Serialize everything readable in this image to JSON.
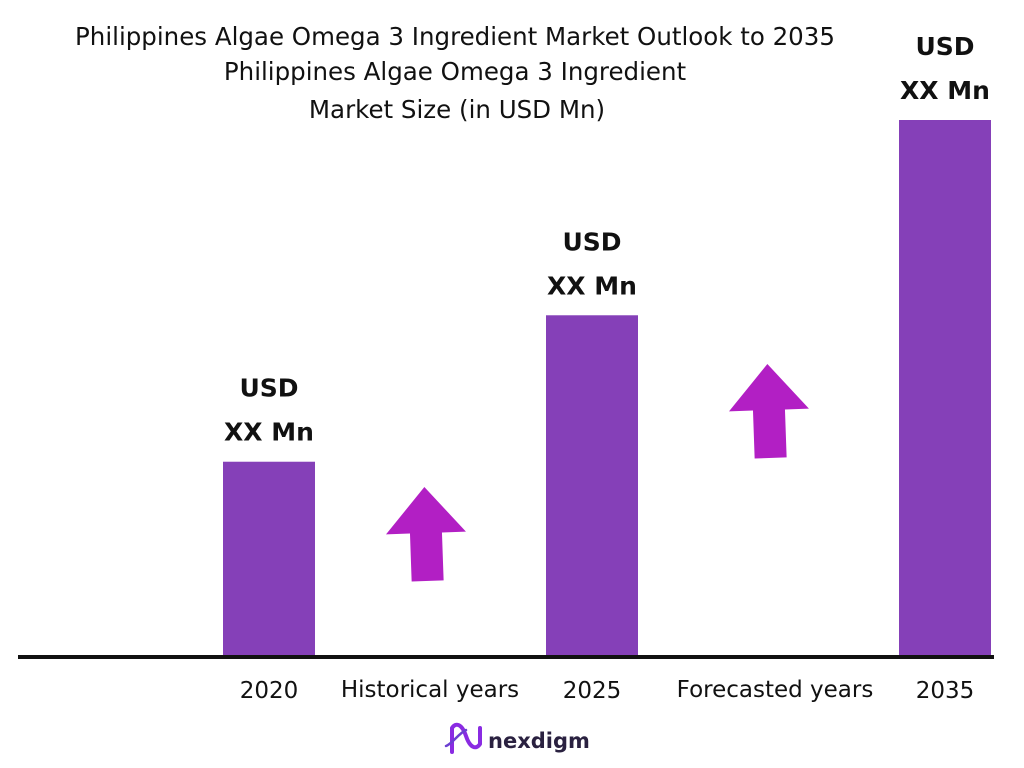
{
  "chart_data": {
    "type": "bar",
    "title": "Philippines Algae Omega 3 Ingredient Market Outlook to 2035",
    "subtitle": [
      "Philippines Algae Omega 3 Ingredient",
      "Market Size (in USD Mn)"
    ],
    "categories": [
      "2020",
      "2025",
      "2035"
    ],
    "values": [
      1.0,
      1.75,
      2.75
    ],
    "value_labels": [
      [
        "USD",
        "XX Mn"
      ],
      [
        "USD",
        "XX Mn"
      ],
      [
        "USD",
        "XX Mn"
      ]
    ],
    "period_labels": [
      "Historical years",
      "Forecasted years"
    ],
    "arrows": [
      {
        "icon": "up-arrow-icon",
        "between": [
          "2020",
          "2025"
        ]
      },
      {
        "icon": "up-arrow-icon",
        "between": [
          "2025",
          "2035"
        ]
      }
    ],
    "ylim": [
      0,
      2.75
    ],
    "xlabel": "",
    "ylabel": "",
    "grid": false,
    "legend": "none"
  },
  "colors": {
    "bar": "#8540b8",
    "arrow": "#b21fc4",
    "axis": "#111111",
    "text": "#111111",
    "brand_text": "#2a2140",
    "brand_mark": "#8a2be2"
  },
  "brand": {
    "name": "nexdigm",
    "icon": "nexdigm-logo-icon"
  }
}
